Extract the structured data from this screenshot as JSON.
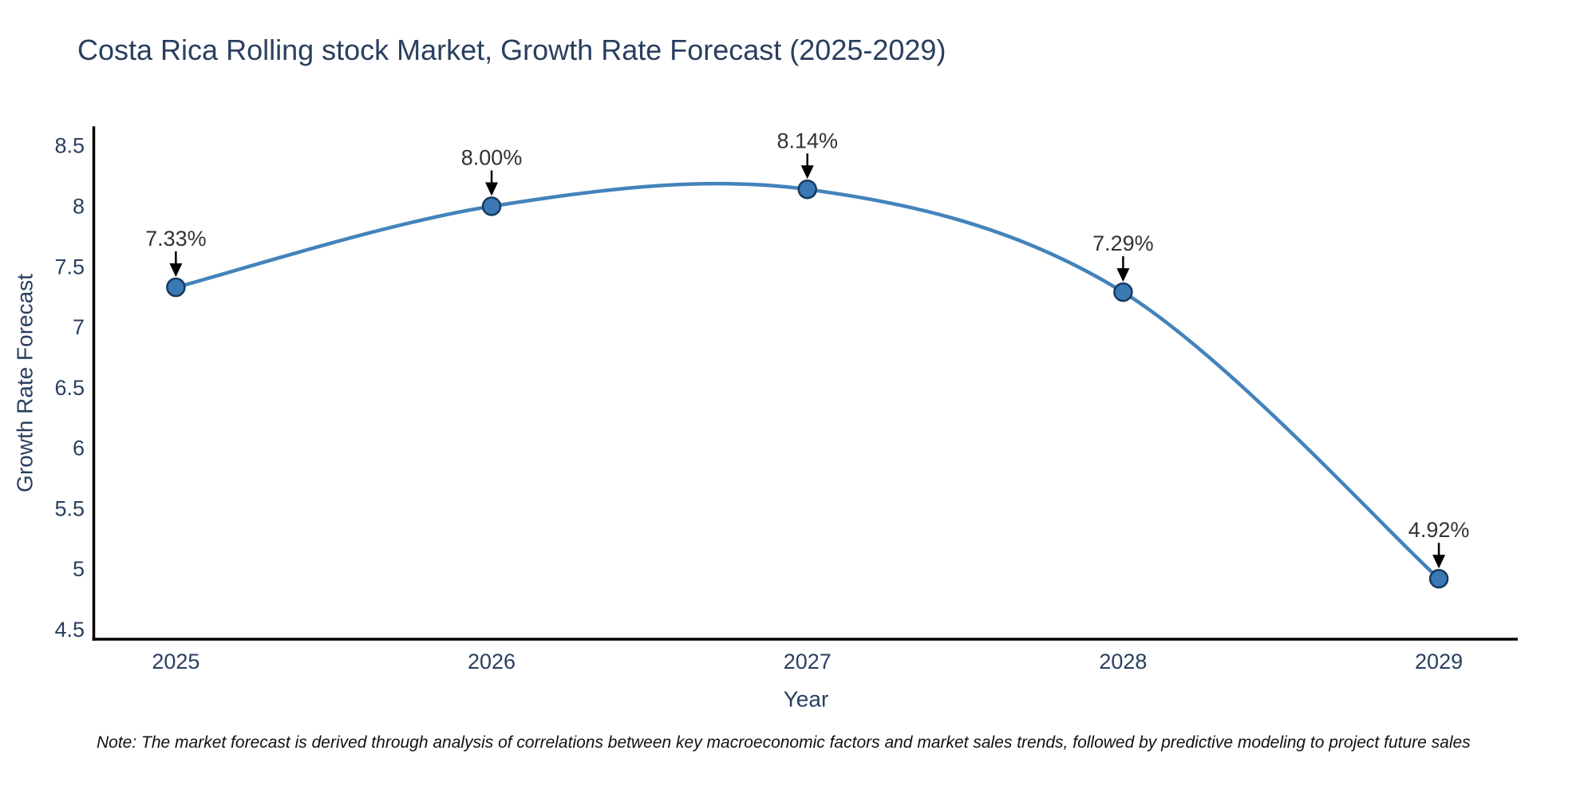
{
  "header": {
    "title": "Costa Rica Rolling stock Market, Growth Rate Forecast (2025-2029)"
  },
  "footer": {
    "note": "Note: The market forecast is derived through analysis of correlations between key macroeconomic factors and market sales trends, followed by predictive modeling to project future sales"
  },
  "chart_data": {
    "type": "line",
    "title": "Costa Rica Rolling stock Market, Growth Rate Forecast (2025-2029)",
    "xlabel": "Year",
    "ylabel": "Growth Rate Forecast",
    "x": [
      2025,
      2026,
      2027,
      2028,
      2029
    ],
    "series": [
      {
        "name": "Growth Rate Forecast",
        "values": [
          7.33,
          8.0,
          8.14,
          7.29,
          4.92
        ]
      }
    ],
    "point_labels": [
      "7.33%",
      "8.00%",
      "8.14%",
      "7.29%",
      "4.92%"
    ],
    "xtick_labels": [
      "2025",
      "2026",
      "2027",
      "2028",
      "2029"
    ],
    "yticks": [
      4.5,
      5,
      5.5,
      6,
      6.5,
      7,
      7.5,
      8,
      8.5
    ],
    "ytick_labels": [
      "4.5",
      "5",
      "5.5",
      "6",
      "6.5",
      "7",
      "7.5",
      "8",
      "8.5"
    ],
    "xlim": [
      2024.74,
      2029.25
    ],
    "ylim": [
      4.42,
      8.65
    ],
    "grid": false,
    "legend": false,
    "annotation_style": "arrow-to-point",
    "colors": {
      "line": "#4383bc",
      "marker_fill": "#3b79b5",
      "marker_edge": "#173a5e",
      "axis": "#000000",
      "tick_text": "#2a3f5f",
      "axis_label_text": "#2a3f5f",
      "title_text": "#2a3f5f",
      "annotation_text": "#333333",
      "arrow": "#000000"
    }
  }
}
